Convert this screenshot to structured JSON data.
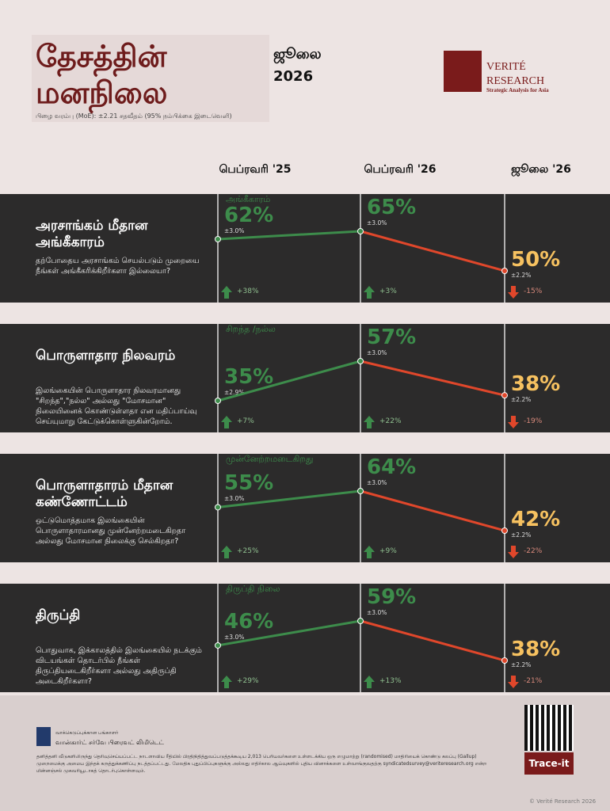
{
  "header": {
    "title": "தேசத்தின் மனநிலை",
    "edition": "ஜூலை 2026",
    "moe": "பிழை வரம்பு (MoE): ±2.21 சதவீதம் (95% நம்பிக்கை இடைவெளி)",
    "logo_name": "VERITÉ RESEARCH",
    "logo_tagline": "Strategic Analysis for Asia"
  },
  "columns": [
    "பெப்ரவரி '25",
    "பெப்ரவரி '26",
    "ஜூலை '26"
  ],
  "colors": {
    "up": "#3d8c4b",
    "down": "#e0472b",
    "latest": "#f6c160",
    "title": "#6e1c1c"
  },
  "chart_data": [
    {
      "type": "line",
      "title": "அரசாங்கம் மீதான அங்கீகாரம்",
      "question": "தற்போதைய அரசாங்கம் செயல்படும் முறையை நீங்கள் அங்கீகரிக்கிறீர்களா இல்லையா?",
      "series_label": "அங்கீகாரம்",
      "values": [
        62,
        65,
        50
      ],
      "value_labels": [
        "62%",
        "65%",
        "50%"
      ],
      "errors": [
        3.0,
        3.0,
        2.2
      ],
      "error_labels": [
        "±3.0%",
        "±3.0%",
        "±2.2%"
      ],
      "changes": [
        38,
        3,
        -15
      ],
      "change_labels": [
        "+38%",
        "+3%",
        "-15%"
      ]
    },
    {
      "type": "line",
      "title": "பொருளாதார நிலவரம்",
      "question": "இலங்கையின் பொருளாதார நிலவரமானது \"சிறந்த\",\"நல்ல\" அல்லது \"மோசமான\" நிலையினைக் கொண்டுள்ளதா என மதிப்பாய்வு செய்யுமாறு கேட்டுக்கொள்ளுகின்றோம்.",
      "series_label": "சிறந்த /நல்ல",
      "values": [
        35,
        57,
        38
      ],
      "value_labels": [
        "35%",
        "57%",
        "38%"
      ],
      "errors": [
        2.9,
        3.0,
        2.2
      ],
      "error_labels": [
        "±2.9%",
        "±3.0%",
        "±2.2%"
      ],
      "changes": [
        7,
        22,
        -19
      ],
      "change_labels": [
        "+7%",
        "+22%",
        "-19%"
      ]
    },
    {
      "type": "line",
      "title": "பொருளாதாரம் மீதான கண்ணோட்டம்",
      "question": "ஒட்டுமொத்தமாக இலங்கையின் பொருளாதாரமானது முன்னேற்றமடைகிறதா அல்லது மோசமான நிலைக்கு செல்கிறதா?",
      "series_label": "முன்னேற்றமடைகிறது",
      "values": [
        55,
        64,
        42
      ],
      "value_labels": [
        "55%",
        "64%",
        "42%"
      ],
      "errors": [
        3.0,
        3.0,
        2.2
      ],
      "error_labels": [
        "±3.0%",
        "±3.0%",
        "±2.2%"
      ],
      "changes": [
        25,
        9,
        -22
      ],
      "change_labels": [
        "+25%",
        "+9%",
        "-22%"
      ]
    },
    {
      "type": "line",
      "title": "திருப்தி",
      "question": "பொதுவாக, இக்காலத்தில் இலங்கையில் நடக்கும் விடயங்கள் தொடர்பில் நீங்கள் திருப்தியடைகிறீர்களா அல்லது அதிருப்தி அடைகிறீர்களா?",
      "series_label": "திருப்தி நிலை",
      "values": [
        46,
        59,
        38
      ],
      "value_labels": [
        "46%",
        "59%",
        "38%"
      ],
      "errors": [
        3.0,
        3.0,
        2.2
      ],
      "error_labels": [
        "±3.0%",
        "±3.0%",
        "±2.2%"
      ],
      "changes": [
        29,
        13,
        -21
      ],
      "change_labels": [
        "+29%",
        "+13%",
        "-21%"
      ]
    }
  ],
  "footer": {
    "partner_label": "வாக்கெடுப்புக்கான பங்காளர்",
    "partner": "வான்கார்ட் சர்வே பிரைவட் லிமிடெட்",
    "method": "தனித்தனி வீடுகளிலிருந்து தெரிவுசெய்யப்பட்ட நாடளாவிய ரீதியில் பிரதிநிதித்துவப்படுத்தக்கூடிய 2,013 பெரியவர்களை உள்ளடக்கிய ஒரு எழுமாற்று (randomised) மாதிரியைக் கொண்டு கலப்பு (Gallup) முறைமைக்கு அமைய இந்தக் கருத்துக்கணிப்பு நடத்தப்பட்டது. மேலதிக புதுப்பிப்புகளுக்கு அல்லது எதிர்கால ஆய்வுகளில் புதிய வினாக்களை உள்வாங்குவதற்கு syndicatedsurvey@veriteresearch.org என்ற மின்னஞ்சல் முகவரியூடாகத் தொடர்புகொள்ளவும்.",
    "trace": "Trace-it",
    "copyright": "© Verité Research 2026"
  }
}
